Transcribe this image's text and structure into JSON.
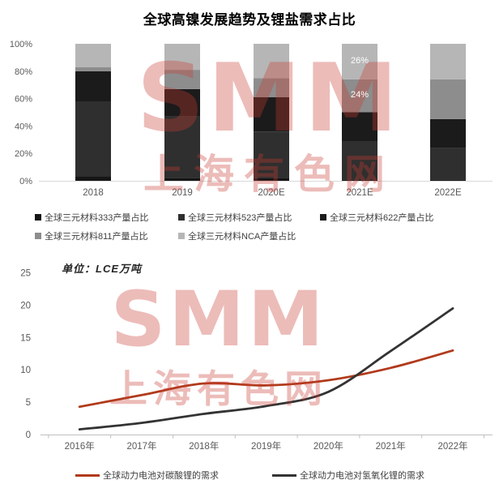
{
  "watermark": {
    "text_primary": "SMM",
    "text_secondary": "上海有色网",
    "color": "#c63a32"
  },
  "chart_data": [
    {
      "type": "bar",
      "subtype": "stacked_percent",
      "title": "全球高镍发展趋势及锂盐需求占比",
      "categories": [
        "2018",
        "2019",
        "2020E",
        "2021E",
        "2022E"
      ],
      "y_ticks": [
        "0%",
        "20%",
        "40%",
        "60%",
        "80%",
        "100%"
      ],
      "ylim": [
        0,
        100
      ],
      "grid": false,
      "legend_position": "bottom",
      "series": [
        {
          "name": "全球三元材料333产量占比",
          "color": "#161616",
          "values": [
            3,
            2,
            2,
            1,
            1
          ]
        },
        {
          "name": "全球三元材料523产量占比",
          "color": "#2f2f2f",
          "values": [
            55,
            45,
            34,
            28,
            23
          ]
        },
        {
          "name": "全球三元材料622产量占比",
          "color": "#1b1b1b",
          "values": [
            22,
            20,
            25,
            21,
            21
          ]
        },
        {
          "name": "全球三元材料811产量占比",
          "color": "#8d8d8d",
          "values": [
            3,
            14,
            14,
            24,
            29
          ]
        },
        {
          "name": "全球三元材料NCA产量占比",
          "color": "#b6b6b6",
          "values": [
            17,
            19,
            25,
            26,
            26
          ]
        }
      ],
      "data_labels": [
        {
          "category": "2021E",
          "series": "全球三元材料NCA产量占比",
          "text": "26%"
        },
        {
          "category": "2021E",
          "series": "全球三元材料811产量占比",
          "text": "24%"
        }
      ]
    },
    {
      "type": "line",
      "unit_label": "单位：LCE万吨",
      "x": [
        "2016年",
        "2017年",
        "2018年",
        "2019年",
        "2020年",
        "2021年",
        "2022年"
      ],
      "y_ticks": [
        0,
        5,
        10,
        15,
        20,
        25
      ],
      "ylim": [
        0,
        25
      ],
      "grid": false,
      "smooth": true,
      "legend_position": "bottom",
      "series": [
        {
          "name": "全球动力电池对碳酸锂的需求",
          "color": "#b13a1b",
          "values": [
            4.3,
            6.1,
            7.9,
            7.6,
            8.4,
            10.3,
            13.0
          ]
        },
        {
          "name": "全球动力电池对氢氧化锂的需求",
          "color": "#333333",
          "values": [
            0.8,
            1.8,
            3.2,
            4.4,
            6.6,
            12.9,
            19.5
          ]
        }
      ]
    }
  ]
}
